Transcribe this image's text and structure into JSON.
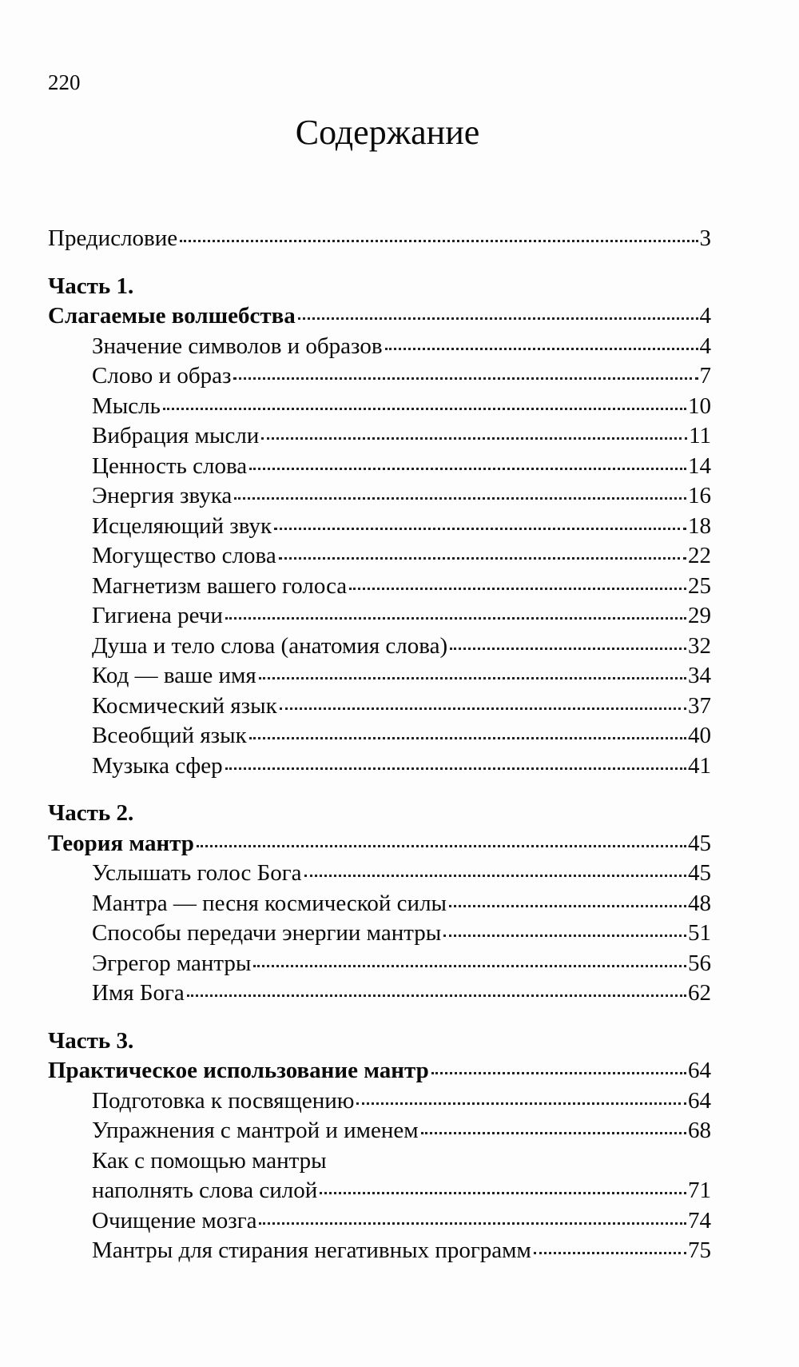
{
  "page_number": "220",
  "title": "Содержание",
  "preface": {
    "label": "Предисловие",
    "page": "3"
  },
  "parts": [
    {
      "heading": "Часть 1.",
      "title": "Слагаемые волшебства",
      "page": "4",
      "items": [
        {
          "label": "Значение символов и образов",
          "page": "4"
        },
        {
          "label": "Слово и образ",
          "page": "7"
        },
        {
          "label": "Мысль",
          "page": "10"
        },
        {
          "label": "Вибрация мысли",
          "page": "11"
        },
        {
          "label": "Ценность слова",
          "page": "14"
        },
        {
          "label": "Энергия звука",
          "page": "16"
        },
        {
          "label": "Исцеляющий звук",
          "page": "18"
        },
        {
          "label": "Могущество слова",
          "page": "22"
        },
        {
          "label": "Магнетизм вашего голоса",
          "page": "25"
        },
        {
          "label": "Гигиена речи",
          "page": "29"
        },
        {
          "label": "Душа и тело слова (анатомия слова)",
          "page": "32"
        },
        {
          "label": "Код — ваше имя",
          "page": "34"
        },
        {
          "label": "Космический язык",
          "page": "37"
        },
        {
          "label": "Всеобщий язык",
          "page": "40"
        },
        {
          "label": "Музыка сфер",
          "page": "41"
        }
      ]
    },
    {
      "heading": "Часть 2.",
      "title": "Теория мантр",
      "page": "45",
      "items": [
        {
          "label": "Услышать голос Бога",
          "page": "45"
        },
        {
          "label": "Мантра — песня космической силы",
          "page": "48"
        },
        {
          "label": "Способы передачи энергии мантры",
          "page": "51"
        },
        {
          "label": "Эгрегор мантры",
          "page": "56"
        },
        {
          "label": "Имя Бога",
          "page": "62"
        }
      ]
    },
    {
      "heading": "Часть 3.",
      "title": "Практическое использование мантр",
      "page": "64",
      "items": [
        {
          "label": "Подготовка к посвящению",
          "page": "64"
        },
        {
          "label": "Упражнения с мантрой и именем",
          "page": "68"
        },
        {
          "label_line1": "Как с помощью мантры",
          "label_line2": "наполнять слова силой",
          "page": "71"
        },
        {
          "label": "Очищение мозга",
          "page": "74"
        },
        {
          "label": "Мантры для стирания негативных программ",
          "page": "75"
        }
      ]
    }
  ]
}
